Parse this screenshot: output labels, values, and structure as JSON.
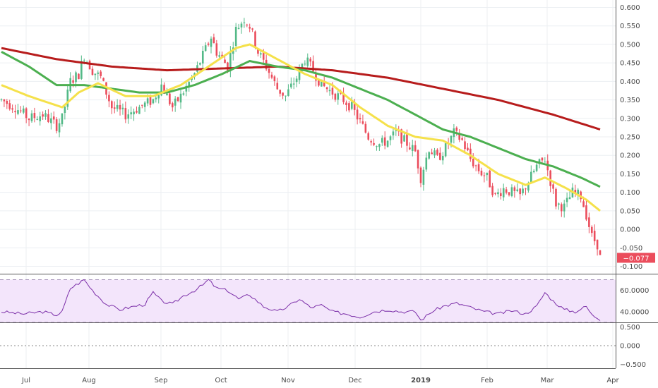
{
  "chart_data": [
    {
      "type": "candlestick",
      "title": "",
      "x_ticks": [
        "Jul",
        "Aug",
        "Sep",
        "Oct",
        "Nov",
        "Dec",
        "2019",
        "Feb",
        "Mar",
        "Apr"
      ],
      "y_ticks": [
        "0.600",
        "0.550",
        "0.500",
        "0.450",
        "0.400",
        "0.350",
        "0.300",
        "0.250",
        "0.200",
        "0.150",
        "0.100",
        "0.050",
        "0.000",
        "-0.050",
        "-0.100"
      ],
      "ylim": [
        -0.12,
        0.62
      ],
      "last_price": -0.077,
      "last_price_label": "−0.077",
      "colors": {
        "up": "#53b987",
        "down": "#eb4d5c",
        "ma_fast": "#f5e14b",
        "ma_mid": "#4caf50",
        "ma_slow": "#b71c1c",
        "last_label_bg": "#eb4d5c"
      },
      "close_points": [
        [
          0,
          0.35
        ],
        [
          5,
          0.33
        ],
        [
          10,
          0.3
        ],
        [
          15,
          0.31
        ],
        [
          20,
          0.28
        ],
        [
          22,
          0.3
        ],
        [
          25,
          0.4
        ],
        [
          28,
          0.42
        ],
        [
          30,
          0.47
        ],
        [
          33,
          0.43
        ],
        [
          36,
          0.41
        ],
        [
          40,
          0.33
        ],
        [
          45,
          0.31
        ],
        [
          50,
          0.33
        ],
        [
          55,
          0.35
        ],
        [
          58,
          0.39
        ],
        [
          62,
          0.33
        ],
        [
          65,
          0.36
        ],
        [
          70,
          0.42
        ],
        [
          73,
          0.47
        ],
        [
          76,
          0.52
        ],
        [
          78,
          0.48
        ],
        [
          82,
          0.44
        ],
        [
          85,
          0.54
        ],
        [
          88,
          0.57
        ],
        [
          90,
          0.55
        ],
        [
          93,
          0.48
        ],
        [
          96,
          0.44
        ],
        [
          100,
          0.38
        ],
        [
          103,
          0.36
        ],
        [
          107,
          0.41
        ],
        [
          110,
          0.46
        ],
        [
          113,
          0.43
        ],
        [
          116,
          0.39
        ],
        [
          120,
          0.37
        ],
        [
          124,
          0.35
        ],
        [
          127,
          0.33
        ],
        [
          130,
          0.29
        ],
        [
          133,
          0.25
        ],
        [
          137,
          0.23
        ],
        [
          140,
          0.24
        ],
        [
          143,
          0.26
        ],
        [
          146,
          0.24
        ],
        [
          150,
          0.21
        ],
        [
          152,
          0.14
        ],
        [
          155,
          0.22
        ],
        [
          158,
          0.19
        ],
        [
          161,
          0.22
        ],
        [
          164,
          0.26
        ],
        [
          167,
          0.24
        ],
        [
          170,
          0.19
        ],
        [
          173,
          0.16
        ],
        [
          176,
          0.14
        ],
        [
          179,
          0.09
        ],
        [
          182,
          0.11
        ],
        [
          185,
          0.1
        ],
        [
          188,
          0.09
        ],
        [
          191,
          0.13
        ],
        [
          194,
          0.17
        ],
        [
          197,
          0.19
        ],
        [
          199,
          0.13
        ],
        [
          201,
          0.07
        ],
        [
          204,
          0.06
        ],
        [
          207,
          0.1
        ],
        [
          210,
          0.09
        ],
        [
          212,
          0.04
        ],
        [
          214,
          -0.02
        ],
        [
          216,
          -0.04
        ],
        [
          217,
          -0.077
        ]
      ],
      "ma_fast_points": [
        [
          0,
          0.39
        ],
        [
          10,
          0.36
        ],
        [
          22,
          0.33
        ],
        [
          28,
          0.37
        ],
        [
          35,
          0.395
        ],
        [
          45,
          0.36
        ],
        [
          55,
          0.36
        ],
        [
          65,
          0.39
        ],
        [
          75,
          0.44
        ],
        [
          85,
          0.49
        ],
        [
          90,
          0.5
        ],
        [
          100,
          0.46
        ],
        [
          110,
          0.42
        ],
        [
          120,
          0.39
        ],
        [
          130,
          0.33
        ],
        [
          140,
          0.28
        ],
        [
          150,
          0.25
        ],
        [
          160,
          0.24
        ],
        [
          170,
          0.2
        ],
        [
          180,
          0.15
        ],
        [
          190,
          0.12
        ],
        [
          197,
          0.14
        ],
        [
          205,
          0.11
        ],
        [
          212,
          0.08
        ],
        [
          217,
          0.05
        ]
      ],
      "ma_mid_points": [
        [
          0,
          0.48
        ],
        [
          10,
          0.44
        ],
        [
          20,
          0.39
        ],
        [
          30,
          0.39
        ],
        [
          40,
          0.38
        ],
        [
          50,
          0.37
        ],
        [
          60,
          0.37
        ],
        [
          70,
          0.39
        ],
        [
          80,
          0.42
        ],
        [
          90,
          0.455
        ],
        [
          100,
          0.44
        ],
        [
          110,
          0.43
        ],
        [
          120,
          0.41
        ],
        [
          130,
          0.38
        ],
        [
          140,
          0.35
        ],
        [
          150,
          0.31
        ],
        [
          160,
          0.27
        ],
        [
          170,
          0.25
        ],
        [
          180,
          0.22
        ],
        [
          190,
          0.19
        ],
        [
          200,
          0.17
        ],
        [
          210,
          0.14
        ],
        [
          217,
          0.115
        ]
      ],
      "ma_slow_points": [
        [
          0,
          0.49
        ],
        [
          20,
          0.46
        ],
        [
          40,
          0.44
        ],
        [
          60,
          0.43
        ],
        [
          80,
          0.435
        ],
        [
          100,
          0.44
        ],
        [
          120,
          0.43
        ],
        [
          140,
          0.41
        ],
        [
          160,
          0.38
        ],
        [
          180,
          0.35
        ],
        [
          200,
          0.31
        ],
        [
          217,
          0.27
        ]
      ]
    },
    {
      "type": "line",
      "title": "",
      "y_ticks": [
        "60.0000",
        "40.0000"
      ],
      "ylim": [
        30,
        75
      ],
      "band": [
        70,
        30
      ],
      "colors": {
        "line": "#7b2ea8",
        "band_fill": "#f3e5fb",
        "band_edge": "#a08cb4"
      },
      "points": [
        [
          0,
          40
        ],
        [
          8,
          38
        ],
        [
          15,
          40
        ],
        [
          20,
          37
        ],
        [
          22,
          40
        ],
        [
          25,
          62
        ],
        [
          30,
          70
        ],
        [
          33,
          60
        ],
        [
          38,
          47
        ],
        [
          43,
          42
        ],
        [
          48,
          45
        ],
        [
          52,
          47
        ],
        [
          55,
          58
        ],
        [
          58,
          50
        ],
        [
          62,
          47
        ],
        [
          66,
          55
        ],
        [
          70,
          60
        ],
        [
          73,
          65
        ],
        [
          75,
          70
        ],
        [
          78,
          62
        ],
        [
          82,
          60
        ],
        [
          86,
          52
        ],
        [
          90,
          56
        ],
        [
          95,
          45
        ],
        [
          100,
          40
        ],
        [
          104,
          45
        ],
        [
          108,
          52
        ],
        [
          112,
          44
        ],
        [
          116,
          46
        ],
        [
          120,
          40
        ],
        [
          125,
          38
        ],
        [
          130,
          35
        ],
        [
          135,
          40
        ],
        [
          140,
          42
        ],
        [
          145,
          40
        ],
        [
          150,
          40
        ],
        [
          152,
          32
        ],
        [
          156,
          40
        ],
        [
          160,
          45
        ],
        [
          165,
          48
        ],
        [
          170,
          44
        ],
        [
          175,
          40
        ],
        [
          180,
          38
        ],
        [
          185,
          41
        ],
        [
          190,
          38
        ],
        [
          194,
          45
        ],
        [
          197,
          58
        ],
        [
          200,
          50
        ],
        [
          204,
          42
        ],
        [
          208,
          40
        ],
        [
          212,
          45
        ],
        [
          214,
          37
        ],
        [
          217,
          33
        ]
      ]
    },
    {
      "type": "line",
      "title": "",
      "y_ticks": [
        "0.500",
        "0.000",
        "−0.500"
      ],
      "ylim": [
        -0.6,
        0.6
      ],
      "baseline": 0.0
    }
  ]
}
